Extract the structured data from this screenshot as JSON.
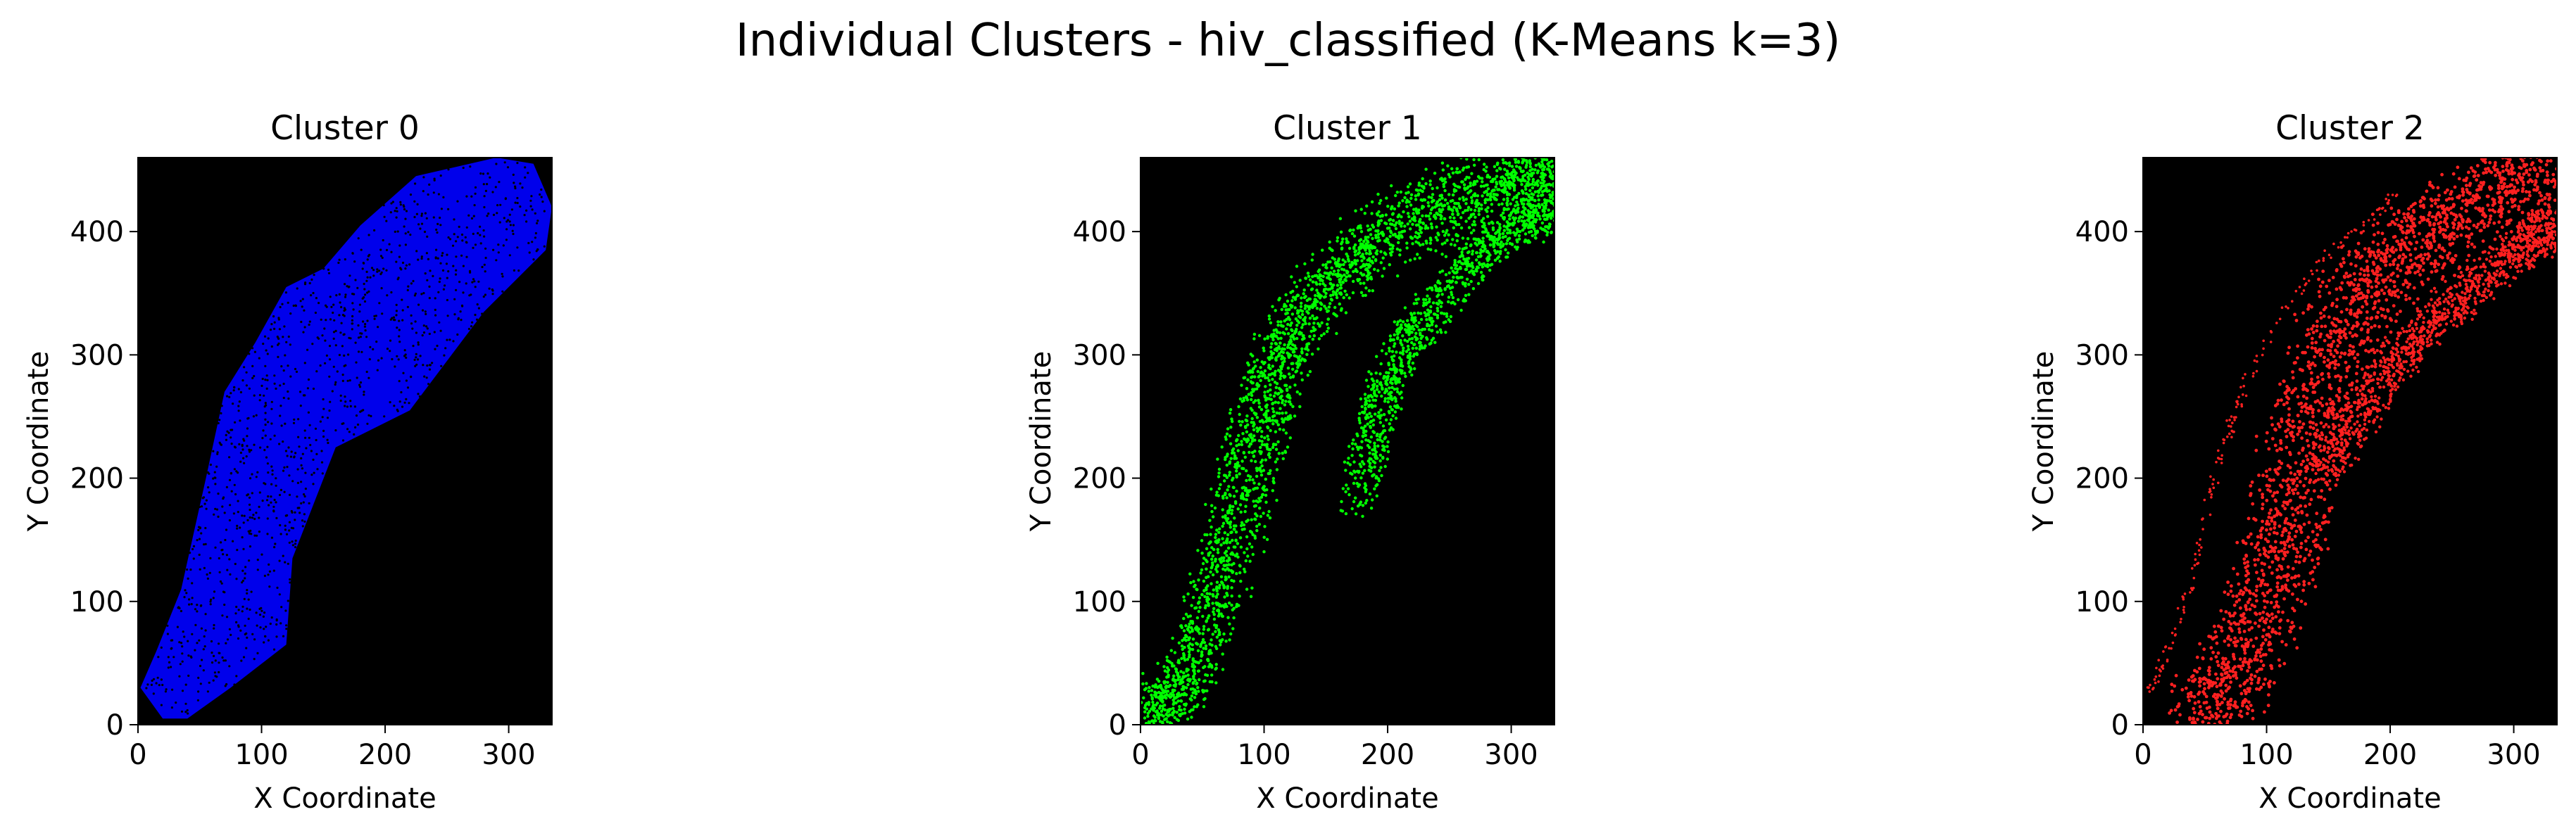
{
  "figure": {
    "title": "Individual Clusters - hiv_classified (K-Means k=3)"
  },
  "chart_data": [
    {
      "type": "scatter",
      "title": "Cluster 0",
      "xlabel": "X Coordinate",
      "ylabel": "Y Coordinate",
      "xlim": [
        0,
        335
      ],
      "ylim": [
        0,
        460
      ],
      "xticks": [
        0,
        100,
        200,
        300
      ],
      "yticks": [
        0,
        100,
        200,
        300,
        400
      ],
      "background": "#000000",
      "marker_color": "#0000ff",
      "grid": false,
      "legend": "none",
      "series": [
        {
          "region_outline": [
            [
              2,
              30
            ],
            [
              20,
              5
            ],
            [
              40,
              5
            ],
            [
              75,
              30
            ],
            [
              120,
              65
            ],
            [
              125,
              135
            ],
            [
              160,
              225
            ],
            [
              220,
              255
            ],
            [
              280,
              335
            ],
            [
              330,
              385
            ],
            [
              335,
              420
            ],
            [
              320,
              455
            ],
            [
              290,
              460
            ],
            [
              225,
              445
            ],
            [
              180,
              405
            ],
            [
              150,
              370
            ],
            [
              120,
              355
            ],
            [
              95,
              310
            ],
            [
              70,
              270
            ],
            [
              55,
              200
            ],
            [
              35,
              110
            ],
            [
              15,
              60
            ]
          ],
          "density_points": [
            [
              30,
              20
            ],
            [
              60,
              70
            ],
            [
              80,
              130
            ],
            [
              100,
              200
            ],
            [
              120,
              260
            ],
            [
              140,
              320
            ],
            [
              170,
              380
            ],
            [
              210,
              420
            ],
            [
              260,
              440
            ],
            [
              310,
              440
            ],
            [
              140,
              180
            ],
            [
              170,
              260
            ],
            [
              200,
              310
            ],
            [
              230,
              360
            ],
            [
              270,
              400
            ],
            [
              300,
              410
            ],
            [
              110,
              120
            ],
            [
              90,
              60
            ],
            [
              190,
              350
            ],
            [
              250,
              300
            ]
          ]
        }
      ]
    },
    {
      "type": "scatter",
      "title": "Cluster 1",
      "xlabel": "X Coordinate",
      "ylabel": "Y Coordinate",
      "xlim": [
        0,
        335
      ],
      "ylim": [
        0,
        460
      ],
      "xticks": [
        0,
        100,
        200,
        300
      ],
      "yticks": [
        0,
        100,
        200,
        300,
        400
      ],
      "background": "#000000",
      "marker_color": "#00ff00",
      "grid": false,
      "legend": "none",
      "series": [
        {
          "band_outer": [
            [
              5,
              25
            ],
            [
              15,
              5
            ],
            [
              40,
              55
            ],
            [
              60,
              120
            ],
            [
              80,
              200
            ],
            [
              95,
              250
            ],
            [
              110,
              300
            ],
            [
              140,
              350
            ],
            [
              175,
              390
            ],
            [
              215,
              420
            ],
            [
              265,
              440
            ],
            [
              310,
              455
            ],
            [
              320,
              455
            ],
            [
              300,
              430
            ],
            [
              250,
              410
            ],
            [
              200,
              390
            ],
            [
              160,
              360
            ],
            [
              130,
              320
            ],
            [
              110,
              270
            ],
            [
              95,
              210
            ],
            [
              80,
              150
            ],
            [
              60,
              90
            ],
            [
              40,
              40
            ],
            [
              20,
              10
            ]
          ],
          "band_inner": [
            [
              175,
              180
            ],
            [
              190,
              250
            ],
            [
              205,
              290
            ],
            [
              230,
              330
            ],
            [
              260,
              370
            ],
            [
              290,
              395
            ],
            [
              320,
              410
            ],
            [
              330,
              425
            ]
          ],
          "density_points": [
            [
              20,
              20
            ],
            [
              50,
              80
            ],
            [
              70,
              140
            ],
            [
              85,
              190
            ],
            [
              100,
              240
            ],
            [
              120,
              300
            ],
            [
              150,
              340
            ],
            [
              190,
              380
            ],
            [
              230,
              410
            ],
            [
              280,
              435
            ],
            [
              310,
              450
            ],
            [
              180,
              230
            ],
            [
              200,
              270
            ],
            [
              240,
              340
            ],
            [
              280,
              380
            ],
            [
              320,
              400
            ]
          ]
        }
      ]
    },
    {
      "type": "scatter",
      "title": "Cluster 2",
      "xlabel": "X Coordinate",
      "ylabel": "Y Coordinate",
      "xlim": [
        0,
        335
      ],
      "ylim": [
        0,
        460
      ],
      "xticks": [
        0,
        100,
        200,
        300
      ],
      "yticks": [
        0,
        100,
        200,
        300,
        400
      ],
      "background": "#000000",
      "marker_color": "#ff2020",
      "grid": false,
      "legend": "none",
      "series": [
        {
          "band_main": [
            [
              40,
              5
            ],
            [
              75,
              40
            ],
            [
              95,
              100
            ],
            [
              110,
              170
            ],
            [
              125,
              240
            ],
            [
              145,
              310
            ],
            [
              175,
              360
            ],
            [
              215,
              395
            ],
            [
              260,
              420
            ],
            [
              300,
              440
            ],
            [
              325,
              450
            ],
            [
              290,
              430
            ],
            [
              240,
              400
            ],
            [
              200,
              370
            ],
            [
              170,
              330
            ],
            [
              150,
              270
            ],
            [
              135,
              210
            ],
            [
              120,
              150
            ],
            [
              100,
              90
            ],
            [
              75,
              35
            ],
            [
              50,
              10
            ]
          ],
          "band_inner": [
            [
              150,
              210
            ],
            [
              175,
              250
            ],
            [
              200,
              290
            ],
            [
              230,
              320
            ],
            [
              260,
              350
            ],
            [
              290,
              375
            ],
            [
              320,
              395
            ],
            [
              330,
              405
            ]
          ],
          "sparse_edge": [
            [
              5,
              25
            ],
            [
              20,
              60
            ],
            [
              40,
              120
            ],
            [
              55,
              190
            ],
            [
              70,
              240
            ],
            [
              85,
              280
            ],
            [
              110,
              330
            ],
            [
              140,
              370
            ],
            [
              170,
              400
            ],
            [
              205,
              430
            ]
          ],
          "density_points": [
            [
              70,
              40
            ],
            [
              90,
              90
            ],
            [
              105,
              150
            ],
            [
              120,
              210
            ],
            [
              135,
              260
            ],
            [
              160,
              320
            ],
            [
              200,
              370
            ],
            [
              250,
              410
            ],
            [
              300,
              440
            ],
            [
              200,
              300
            ],
            [
              240,
              330
            ],
            [
              280,
              360
            ]
          ]
        }
      ]
    }
  ]
}
